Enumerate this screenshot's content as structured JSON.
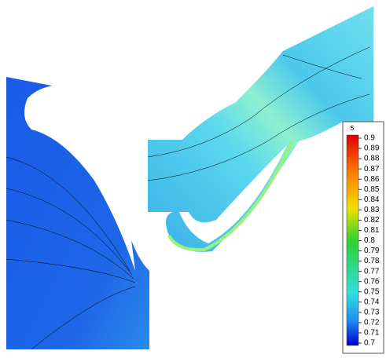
{
  "colorbar": {
    "title": "s",
    "ticks": [
      0.9,
      0.89,
      0.88,
      0.87,
      0.86,
      0.85,
      0.84,
      0.83,
      0.82,
      0.81,
      0.8,
      0.79,
      0.78,
      0.77,
      0.76,
      0.75,
      0.74,
      0.73,
      0.72,
      0.71,
      0.7
    ]
  }
}
